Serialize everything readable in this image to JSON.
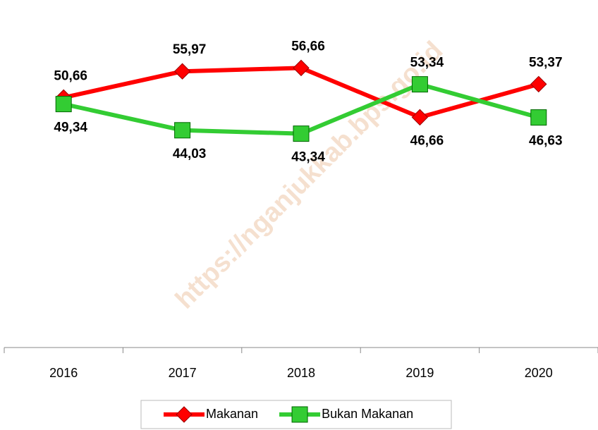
{
  "chart_data": {
    "type": "line",
    "watermark": "https://nganjukkab.bps.go.id",
    "categories": [
      "2016",
      "2017",
      "2018",
      "2019",
      "2020"
    ],
    "series": [
      {
        "name": "Makanan",
        "color": "#ff0000",
        "marker": "diamond",
        "values": [
          50.66,
          55.97,
          56.66,
          46.66,
          53.37
        ],
        "value_labels": [
          "50,66",
          "55,97",
          "56,66",
          "46,66",
          "53,37"
        ]
      },
      {
        "name": "Bukan Makanan",
        "color": "#33cc33",
        "marker": "square",
        "values": [
          49.34,
          44.03,
          43.34,
          53.34,
          46.63
        ],
        "value_labels": [
          "49,34",
          "44,03",
          "43,34",
          "53,34",
          "46,63"
        ]
      }
    ],
    "ylim": [
      0,
      70
    ],
    "legend": "bottom"
  }
}
